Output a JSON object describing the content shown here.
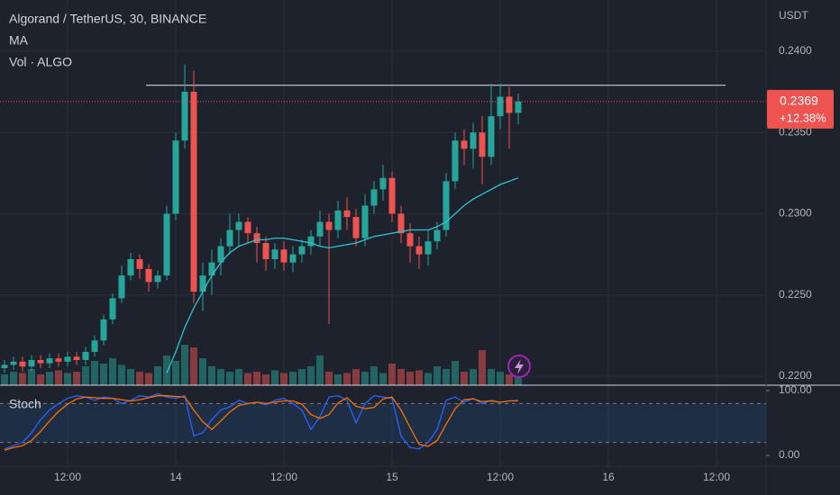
{
  "chart_data": [
    {
      "type": "candlestick",
      "title": "Algorand / TetherUS, 30, BINANCE",
      "y_unit": "USDT",
      "grid": true,
      "up_color": "#26a69a",
      "down_color": "#ef5350",
      "xlim": [
        4.5,
        89.5
      ],
      "xticks": [
        {
          "value": 12,
          "label": "12:00"
        },
        {
          "value": 24,
          "label": "14"
        },
        {
          "value": 36,
          "label": "12:00"
        },
        {
          "value": 48,
          "label": "15"
        },
        {
          "value": 60,
          "label": "12:00"
        },
        {
          "value": 72,
          "label": "16"
        },
        {
          "value": 84,
          "label": "12:00"
        }
      ],
      "ylim": [
        0.21945,
        0.24315
      ],
      "yticks": [
        {
          "value": 0.24,
          "label": "0.2400"
        },
        {
          "value": 0.235,
          "label": "0.2350"
        },
        {
          "value": 0.23,
          "label": "0.2300"
        },
        {
          "value": 0.225,
          "label": "0.2250"
        },
        {
          "value": 0.22,
          "label": "0.2200"
        }
      ],
      "x": [
        5,
        6,
        7,
        8,
        9,
        10,
        11,
        12,
        13,
        14,
        15,
        16,
        17,
        18,
        19,
        20,
        21,
        22,
        23,
        24,
        25,
        26,
        27,
        28,
        29,
        30,
        31,
        32,
        33,
        34,
        35,
        36,
        37,
        38,
        39,
        40,
        41,
        42,
        43,
        44,
        45,
        46,
        47,
        48,
        49,
        50,
        51,
        52,
        53,
        54,
        55,
        56,
        57,
        58,
        59,
        60,
        61,
        62
      ],
      "open": [
        0.2205,
        0.2207,
        0.2209,
        0.2206,
        0.221,
        0.2208,
        0.2211,
        0.2209,
        0.2212,
        0.221,
        0.2215,
        0.2222,
        0.2235,
        0.2248,
        0.2262,
        0.2272,
        0.2266,
        0.2258,
        0.2262,
        0.23,
        0.2345,
        0.2375,
        0.2252,
        0.2262,
        0.227,
        0.228,
        0.229,
        0.2295,
        0.2288,
        0.2282,
        0.2272,
        0.2278,
        0.227,
        0.2275,
        0.228,
        0.2286,
        0.2295,
        0.229,
        0.2302,
        0.2298,
        0.2285,
        0.2305,
        0.2315,
        0.2322,
        0.23,
        0.2288,
        0.228,
        0.2275,
        0.2283,
        0.229,
        0.232,
        0.2345,
        0.234,
        0.235,
        0.2335,
        0.236,
        0.2372,
        0.2362
      ],
      "high": [
        0.221,
        0.2212,
        0.2212,
        0.2213,
        0.2213,
        0.2214,
        0.2214,
        0.2215,
        0.2215,
        0.2218,
        0.2225,
        0.2238,
        0.2251,
        0.2268,
        0.2276,
        0.2275,
        0.2269,
        0.2265,
        0.2305,
        0.235,
        0.2392,
        0.2388,
        0.227,
        0.2278,
        0.2285,
        0.23,
        0.23,
        0.2298,
        0.2292,
        0.2286,
        0.2282,
        0.2283,
        0.228,
        0.2284,
        0.229,
        0.2302,
        0.23,
        0.2308,
        0.231,
        0.2303,
        0.2312,
        0.232,
        0.233,
        0.2326,
        0.2305,
        0.2294,
        0.2286,
        0.229,
        0.2295,
        0.2325,
        0.235,
        0.2352,
        0.2356,
        0.236,
        0.238,
        0.238,
        0.2378,
        0.2374
      ],
      "low": [
        0.2202,
        0.2204,
        0.2203,
        0.2203,
        0.2205,
        0.2205,
        0.2206,
        0.2206,
        0.2207,
        0.2207,
        0.2212,
        0.2219,
        0.2232,
        0.2245,
        0.2259,
        0.226,
        0.2252,
        0.2254,
        0.2259,
        0.2296,
        0.234,
        0.2245,
        0.224,
        0.225,
        0.2262,
        0.2275,
        0.228,
        0.2282,
        0.227,
        0.2265,
        0.2266,
        0.2265,
        0.2264,
        0.227,
        0.2275,
        0.228,
        0.2232,
        0.2285,
        0.229,
        0.228,
        0.228,
        0.23,
        0.2308,
        0.2295,
        0.2282,
        0.227,
        0.2266,
        0.2268,
        0.2278,
        0.2286,
        0.2315,
        0.233,
        0.2328,
        0.2318,
        0.233,
        0.2352,
        0.234,
        0.2355
      ],
      "close": [
        0.2207,
        0.2209,
        0.2206,
        0.221,
        0.2208,
        0.2211,
        0.2209,
        0.2212,
        0.221,
        0.2215,
        0.2222,
        0.2235,
        0.2248,
        0.2262,
        0.2272,
        0.2266,
        0.2258,
        0.2262,
        0.23,
        0.2345,
        0.2375,
        0.2252,
        0.2262,
        0.227,
        0.228,
        0.229,
        0.2295,
        0.2288,
        0.2282,
        0.2272,
        0.2278,
        0.227,
        0.2275,
        0.228,
        0.2286,
        0.2295,
        0.229,
        0.2302,
        0.2298,
        0.2285,
        0.2305,
        0.2315,
        0.2322,
        0.23,
        0.2288,
        0.228,
        0.2275,
        0.2283,
        0.229,
        0.232,
        0.2345,
        0.234,
        0.235,
        0.2335,
        0.236,
        0.2372,
        0.2362,
        0.2369
      ],
      "ma": {
        "name": "MA",
        "color": "#2ec4cf",
        "values": [
          null,
          null,
          null,
          null,
          null,
          null,
          null,
          null,
          null,
          null,
          null,
          null,
          null,
          null,
          null,
          null,
          null,
          null,
          0.2202,
          0.2215,
          0.223,
          0.2242,
          0.2252,
          0.2262,
          0.227,
          0.2276,
          0.228,
          0.2282,
          0.2284,
          0.2284,
          0.2285,
          0.2285,
          0.2284,
          0.2283,
          0.2282,
          0.228,
          0.2279,
          0.228,
          0.2281,
          0.2282,
          0.2284,
          0.2286,
          0.2287,
          0.2288,
          0.2289,
          0.229,
          0.229,
          0.229,
          0.2292,
          0.2295,
          0.23,
          0.2305,
          0.2309,
          0.2312,
          0.2315,
          0.2318,
          0.232,
          0.2322
        ]
      },
      "volume": {
        "name": "Vol · ALGO",
        "values": [
          8,
          10,
          9,
          12,
          8,
          10,
          11,
          9,
          10,
          14,
          18,
          16,
          20,
          15,
          12,
          10,
          9,
          14,
          22,
          18,
          30,
          28,
          20,
          14,
          12,
          10,
          12,
          9,
          10,
          8,
          11,
          9,
          10,
          12,
          14,
          22,
          10,
          8,
          9,
          12,
          10,
          14,
          9,
          16,
          12,
          10,
          11,
          9,
          14,
          12,
          18,
          10,
          12,
          26,
          12,
          10,
          8,
          9
        ]
      },
      "level": {
        "value": 0.2379,
        "x": [
          20.7,
          85
        ]
      },
      "last_price": 0.2369,
      "change": {
        "value": 12.38,
        "label": "+12.38%"
      }
    },
    {
      "type": "stoch",
      "title": "Stoch",
      "xlim": [
        4.5,
        89.5
      ],
      "ylim": [
        -16.7,
        108.3
      ],
      "yticks": [
        {
          "value": 100,
          "label": "100.00"
        },
        {
          "value": 0,
          "label": "0.00"
        }
      ],
      "bands": [
        20,
        80
      ],
      "x": [
        5,
        6,
        7,
        8,
        9,
        10,
        11,
        12,
        13,
        14,
        15,
        16,
        17,
        18,
        19,
        20,
        21,
        22,
        23,
        24,
        25,
        26,
        27,
        28,
        29,
        30,
        31,
        32,
        33,
        34,
        35,
        36,
        37,
        38,
        39,
        40,
        41,
        42,
        43,
        44,
        45,
        46,
        47,
        48,
        49,
        50,
        51,
        52,
        53,
        54,
        55,
        56,
        57,
        58,
        59,
        60,
        61,
        62
      ],
      "series": [
        {
          "color": "#2962ff",
          "values": [
            10,
            15,
            20,
            35,
            55,
            70,
            80,
            88,
            92,
            90,
            85,
            90,
            88,
            80,
            85,
            92,
            90,
            95,
            90,
            88,
            92,
            30,
            35,
            55,
            70,
            75,
            85,
            80,
            82,
            78,
            85,
            88,
            80,
            70,
            40,
            60,
            90,
            92,
            85,
            50,
            80,
            92,
            90,
            88,
            30,
            12,
            10,
            20,
            40,
            85,
            90,
            82,
            88,
            80,
            85,
            82,
            84,
            85
          ]
        },
        {
          "color": "#ff6d00",
          "values": [
            8,
            12,
            15,
            23,
            37,
            53,
            68,
            79,
            87,
            90,
            89,
            88,
            88,
            86,
            84,
            86,
            89,
            92,
            92,
            91,
            90,
            70,
            52,
            40,
            53,
            67,
            77,
            80,
            82,
            80,
            82,
            84,
            84,
            79,
            63,
            57,
            63,
            81,
            89,
            76,
            72,
            74,
            87,
            90,
            70,
            43,
            17,
            14,
            23,
            48,
            72,
            86,
            87,
            83,
            84,
            82,
            84,
            84
          ]
        }
      ]
    }
  ]
}
